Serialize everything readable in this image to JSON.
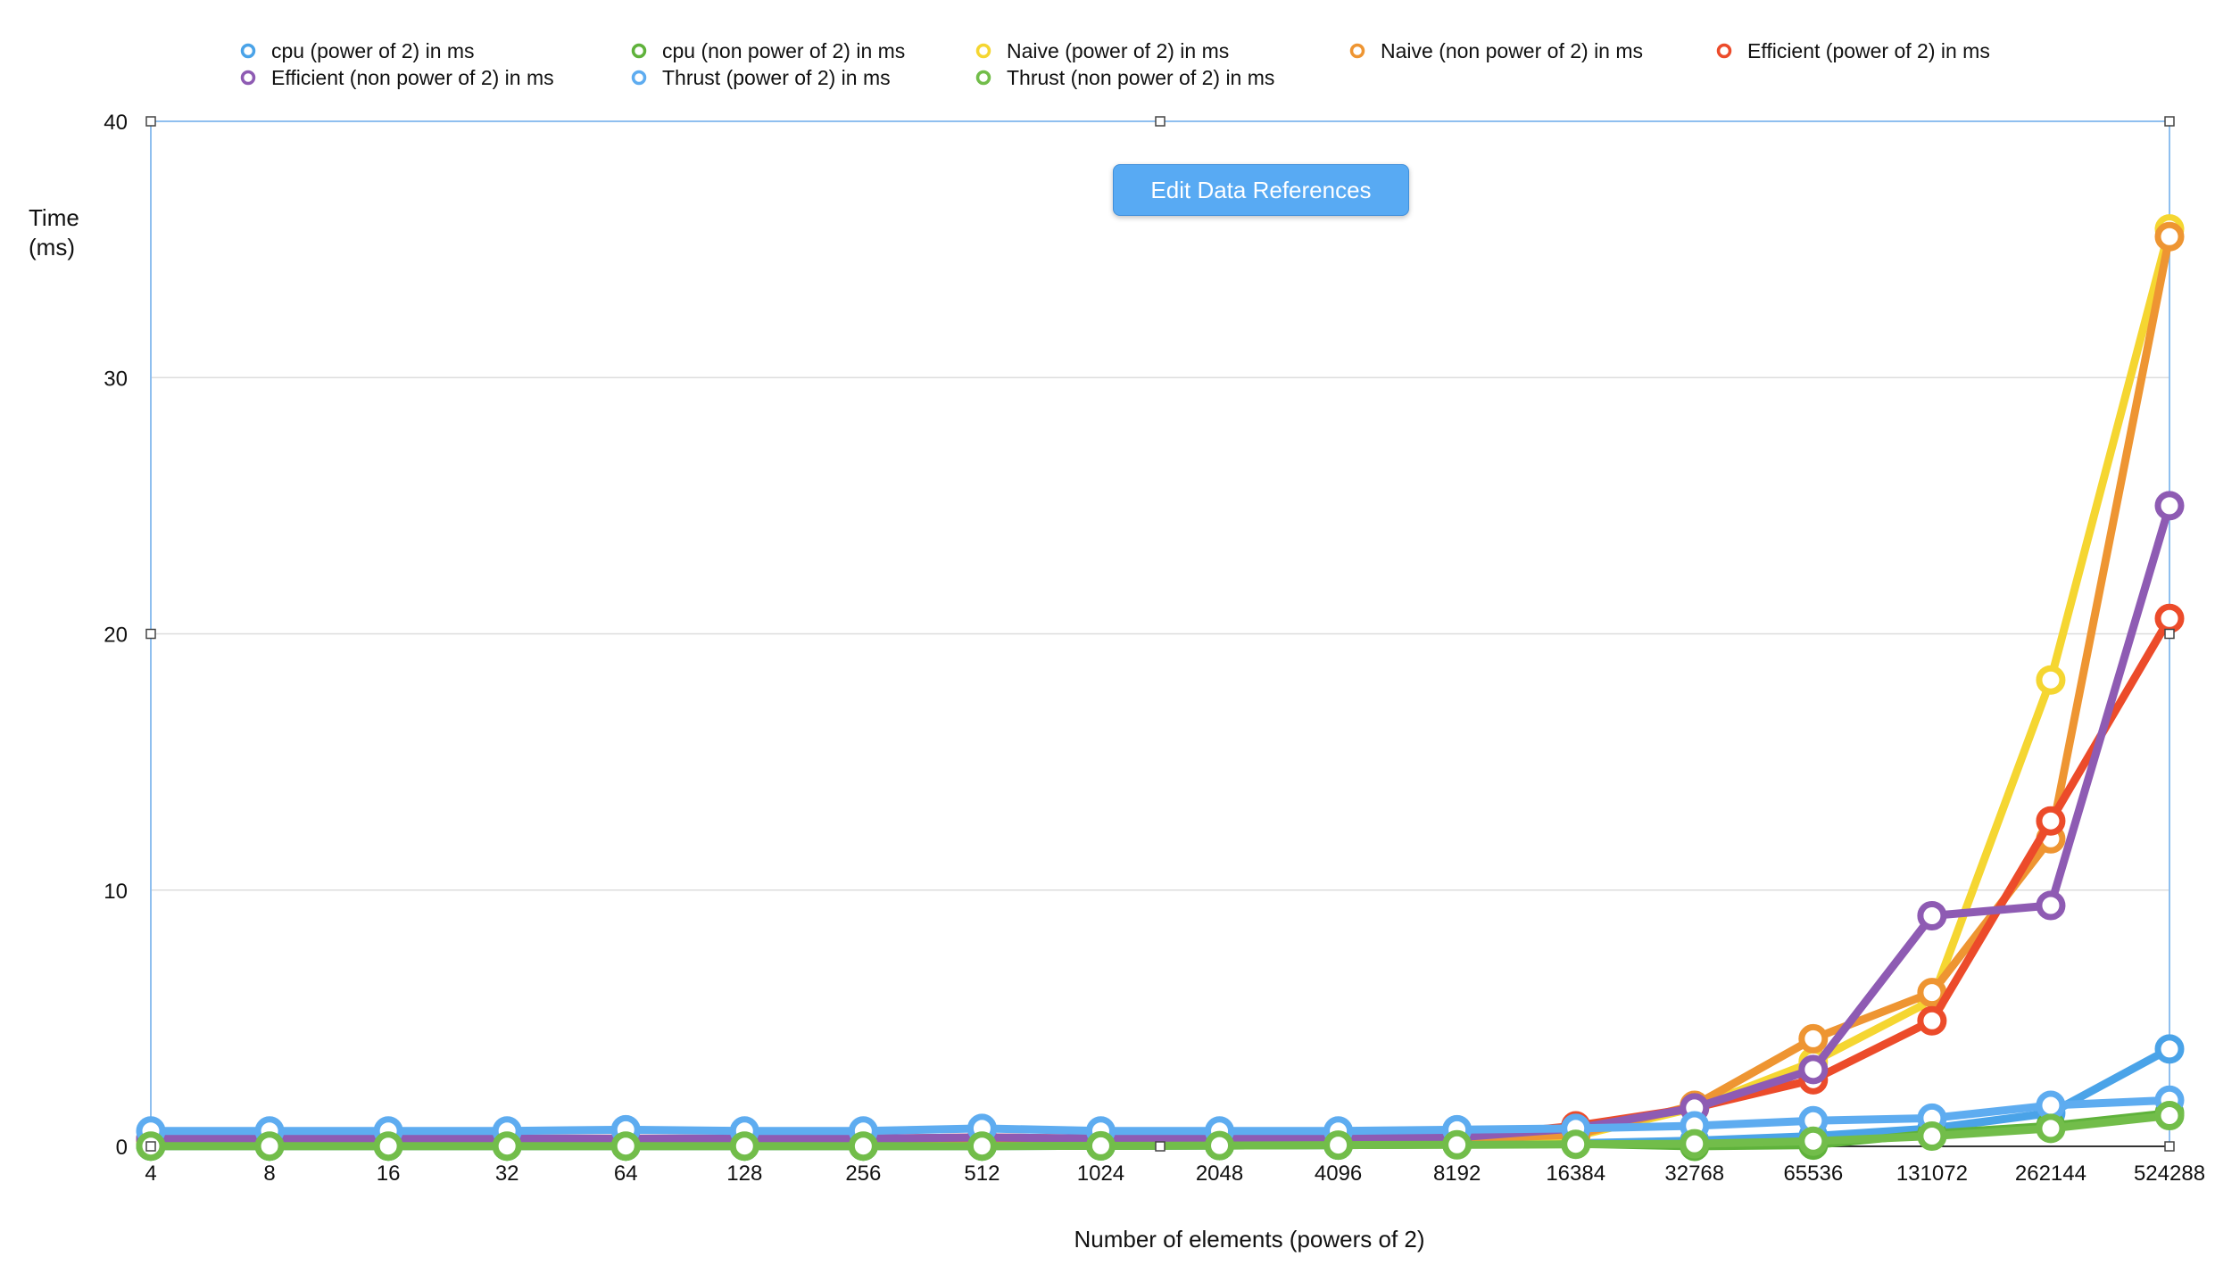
{
  "toolbar": {
    "edit_data_references_label": "Edit Data References"
  },
  "chart_data": {
    "type": "line",
    "xlabel": "Number of elements (powers of 2)",
    "ylabel_lines": [
      "Time",
      "(ms)"
    ],
    "ylim": [
      0,
      40
    ],
    "yticks": [
      0,
      10,
      20,
      30,
      40
    ],
    "grid": true,
    "legend_position": "top",
    "categories": [
      "4",
      "8",
      "16",
      "32",
      "64",
      "128",
      "256",
      "512",
      "1024",
      "2048",
      "4096",
      "8192",
      "16384",
      "32768",
      "65536",
      "131072",
      "262144",
      "524288"
    ],
    "series": [
      {
        "name": "cpu (power of 2) in ms",
        "color": "#4aa3e8",
        "values": [
          0.01,
          0.01,
          0.01,
          0.01,
          0.01,
          0.01,
          0.01,
          0.01,
          0.02,
          0.03,
          0.05,
          0.08,
          0.12,
          0.22,
          0.4,
          0.7,
          1.3,
          3.8
        ]
      },
      {
        "name": "cpu (non power of 2) in ms",
        "color": "#5fb23b",
        "values": [
          0.01,
          0.01,
          0.01,
          0.01,
          0.01,
          0.01,
          0.01,
          0.01,
          0.02,
          0.03,
          0.05,
          0.07,
          0.1,
          0.0,
          0.05,
          0.5,
          0.8,
          1.3
        ]
      },
      {
        "name": "Naive (power of 2) in ms",
        "color": "#f5d631",
        "values": [
          0.25,
          0.25,
          0.25,
          0.25,
          0.25,
          0.25,
          0.25,
          0.3,
          0.25,
          0.25,
          0.25,
          0.3,
          0.4,
          1.5,
          3.3,
          5.7,
          18.2,
          35.8
        ]
      },
      {
        "name": "Naive (non power of 2) in ms",
        "color": "#ee9532",
        "values": [
          0.25,
          0.25,
          0.25,
          0.25,
          0.25,
          0.25,
          0.25,
          0.3,
          0.25,
          0.25,
          0.25,
          0.3,
          0.45,
          1.6,
          4.2,
          6.0,
          12.0,
          35.5
        ]
      },
      {
        "name": "Efficient (power of 2) in ms",
        "color": "#ec4b2a",
        "values": [
          0.3,
          0.3,
          0.3,
          0.3,
          0.3,
          0.3,
          0.3,
          0.35,
          0.3,
          0.3,
          0.3,
          0.35,
          0.8,
          1.5,
          2.6,
          4.9,
          12.7,
          20.6
        ]
      },
      {
        "name": "Efficient (non power of 2) in ms",
        "color": "#8e5bb3",
        "values": [
          0.3,
          0.3,
          0.3,
          0.3,
          0.3,
          0.3,
          0.3,
          0.35,
          0.3,
          0.3,
          0.3,
          0.35,
          0.7,
          1.5,
          3.0,
          9.0,
          9.4,
          25.0
        ]
      },
      {
        "name": "Thrust (power of 2) in ms",
        "color": "#5eacf0",
        "values": [
          0.6,
          0.6,
          0.6,
          0.6,
          0.65,
          0.6,
          0.6,
          0.7,
          0.6,
          0.6,
          0.6,
          0.65,
          0.7,
          0.8,
          1.0,
          1.1,
          1.6,
          1.8
        ]
      },
      {
        "name": "Thrust (non power of 2) in ms",
        "color": "#72bd4a",
        "values": [
          0.01,
          0.01,
          0.01,
          0.01,
          0.01,
          0.01,
          0.01,
          0.01,
          0.02,
          0.03,
          0.05,
          0.06,
          0.08,
          0.1,
          0.2,
          0.4,
          0.7,
          1.2
        ]
      }
    ]
  }
}
